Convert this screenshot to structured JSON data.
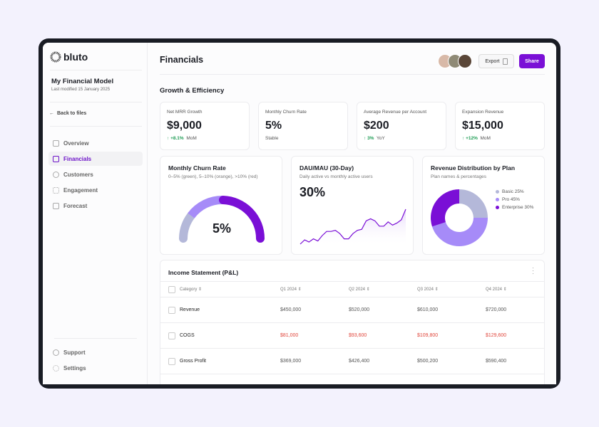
{
  "brand": "bluto",
  "sidebar": {
    "model_title": "My Financial Model",
    "last_modified": "Last modified 15 January 2025",
    "back": "Back to files",
    "items": [
      {
        "label": "Overview",
        "icon": "layers-icon"
      },
      {
        "label": "Financials",
        "icon": "bar-chart-icon",
        "active": true
      },
      {
        "label": "Customers",
        "icon": "users-icon"
      },
      {
        "label": "Engagement",
        "icon": "sparkle-icon"
      },
      {
        "label": "Forecast",
        "icon": "monitor-icon"
      }
    ],
    "bottom": [
      {
        "label": "Support",
        "icon": "lifebuoy-icon"
      },
      {
        "label": "Settings",
        "icon": "gear-icon"
      }
    ]
  },
  "header": {
    "title": "Financials",
    "export": "Export",
    "share": "Share"
  },
  "section": "Growth & Efficiency",
  "kpis": [
    {
      "label": "Net MRR Growth",
      "value": "$9,000",
      "delta": "+8.1%",
      "period": "MoM"
    },
    {
      "label": "Monthly Churn Rate",
      "value": "5%",
      "note": "Stable"
    },
    {
      "label": "Average Revenue per Account",
      "value": "$200",
      "delta": "3%",
      "period": "YoY"
    },
    {
      "label": "Expansion Revenue",
      "value": "$15,000",
      "delta": "+12%",
      "period": "MoM"
    }
  ],
  "gauge": {
    "title": "Monthly Churn Rate",
    "subtitle": "0–5% (green), 5–10% (orange), >10% (red)",
    "value": "5%"
  },
  "dau": {
    "title": "DAU/MAU (30-Day)",
    "subtitle": "Daily active vs monthly active users",
    "value": "30%"
  },
  "pie": {
    "title": "Revenue Distribution by Plan",
    "subtitle": "Plan names & percentages"
  },
  "chart_data": {
    "type": "pie",
    "title": "Revenue Distribution by Plan",
    "categories": [
      "Basic 25%",
      "Pro 45%",
      "Enterprise 30%"
    ],
    "values": [
      25,
      45,
      30
    ],
    "colors": [
      "#b4b8d9",
      "#a68bf8",
      "#7a0fd6"
    ],
    "sparkline": [
      2,
      6,
      4,
      7,
      5,
      10,
      14,
      14,
      15,
      12,
      7,
      7,
      12,
      15,
      16,
      24,
      26,
      24,
      19,
      19,
      23,
      20,
      22,
      25,
      35
    ]
  },
  "table": {
    "title": "Income Statement (P&L)",
    "headers": [
      "Category",
      "Q1 2024",
      "Q2 2024",
      "Q3 2024",
      "Q4 2024"
    ],
    "rows": [
      {
        "cells": [
          "Revenue",
          "$450,000",
          "$520,000",
          "$610,000",
          "$720,000"
        ]
      },
      {
        "cells": [
          "COGS",
          "$81,000",
          "$93,600",
          "$109,800",
          "$129,600"
        ],
        "negative": true
      },
      {
        "cells": [
          "Gross Profit",
          "$369,000",
          "$426,400",
          "$500,200",
          "$590,400"
        ]
      }
    ]
  }
}
